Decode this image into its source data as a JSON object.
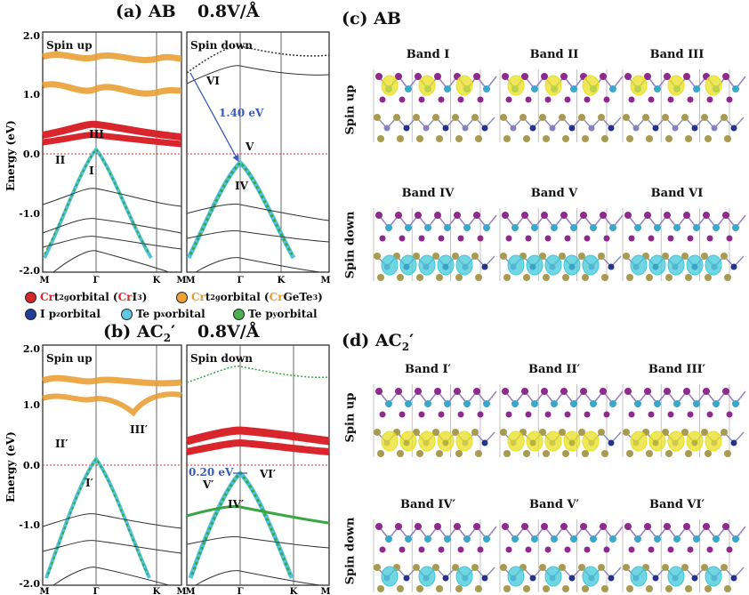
{
  "panel_a": {
    "title": "(a) AB",
    "field": "0.8V/Å",
    "spin_up": "Spin up",
    "spin_down": "Spin down",
    "gap_label": "1.40 eV",
    "band_marks_up": [
      "I",
      "II",
      "III"
    ],
    "band_marks_down": [
      "IV",
      "V",
      "VI"
    ]
  },
  "panel_b": {
    "title": "(b) AC",
    "title_sub": "2",
    "title_prime": "′",
    "field": "0.8V/Å",
    "spin_up": "Spin up",
    "spin_down": "Spin down",
    "gap_label": "0.20 eV",
    "band_marks_up": [
      "I′",
      "II′",
      "III′"
    ],
    "band_marks_down": [
      "IV′",
      "V′",
      "VI′"
    ]
  },
  "axes": {
    "ylabel": "Energy (eV)",
    "yticks": [
      "2.0",
      "1.0",
      "0.0",
      "-1.0",
      "-2.0"
    ],
    "xticks": [
      "M",
      "Γ",
      "K",
      "M"
    ]
  },
  "legend": {
    "cr_ci3": {
      "pre": "Cr",
      "mid": " t",
      "sub": "2g",
      "post": " orbital (",
      "hl": "Cr",
      "tail": "I",
      "tail_sub": "3",
      "end": ")",
      "color": "#d8262c"
    },
    "cr_cgt": {
      "pre": "Cr",
      "mid": " t",
      "sub": "2g",
      "post": " orbital (",
      "hl": "Cr",
      "tail": "GeTe",
      "tail_sub": "3",
      "end": ")",
      "color": "#f0a030"
    },
    "i_pz": {
      "text": "I p",
      "sub": "z",
      "post": " orbital",
      "color": "#1f3d9a"
    },
    "te_px": {
      "text": "Te p",
      "sub": "x",
      "post": " orbital",
      "color": "#5ec8e0"
    },
    "te_py": {
      "text": "Te p",
      "sub": "y",
      "post": " orbital",
      "color": "#4caf50"
    }
  },
  "panel_c": {
    "title": "(c) AB",
    "row_up": "Spin up",
    "row_down": "Spin down",
    "bands_up": [
      "Band I",
      "Band II",
      "Band III"
    ],
    "bands_down": [
      "Band IV",
      "Band V",
      "Band VI"
    ]
  },
  "panel_d": {
    "title": "(d) AC",
    "title_sub": "2",
    "title_prime": "′",
    "row_up": "Spin up",
    "row_down": "Spin down",
    "bands_up": [
      "Band I′",
      "Band II′",
      "Band III′"
    ],
    "bands_down": [
      "Band IV′",
      "Band V′",
      "Band VI′"
    ]
  },
  "colors": {
    "cr": "#d8262c",
    "cgt": "#e89a2a",
    "i_pz": "#1f3d9a",
    "te_px": "#4fc3dc",
    "te_py": "#3aa544",
    "fermi": "#d63030",
    "arrow": "#3a5bb8",
    "iso_up": "#e8e020",
    "iso_down": "#40c8d8"
  }
}
